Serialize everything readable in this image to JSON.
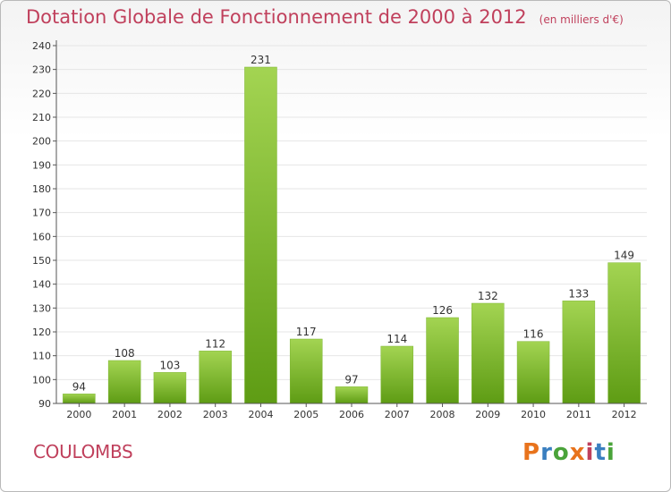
{
  "header": {
    "title": "Dotation Globale de Fonctionnement de 2000 à 2012",
    "subtitle": "(en milliers d'€)"
  },
  "footer": {
    "commune": "COULOMBS",
    "logo_text": "Proxiti"
  },
  "colors": {
    "title": "#c0405c",
    "bar_light": "#a3d452",
    "bar_dark": "#5e9c14",
    "grid": "#e6e6e6",
    "axis": "#555555"
  },
  "chart_data": {
    "type": "bar",
    "title": "Dotation Globale de Fonctionnement de 2000 à 2012",
    "subtitle": "(en milliers d'€)",
    "xlabel": "",
    "ylabel": "",
    "categories": [
      "2000",
      "2001",
      "2002",
      "2003",
      "2004",
      "2005",
      "2006",
      "2007",
      "2008",
      "2009",
      "2010",
      "2011",
      "2012"
    ],
    "values": [
      94,
      108,
      103,
      112,
      231,
      117,
      97,
      114,
      126,
      132,
      116,
      133,
      149
    ],
    "ylim": [
      90,
      240
    ],
    "yticks": [
      90,
      100,
      110,
      120,
      130,
      140,
      150,
      160,
      170,
      180,
      190,
      200,
      210,
      220,
      230,
      240
    ],
    "grid": true,
    "data_labels": true
  }
}
